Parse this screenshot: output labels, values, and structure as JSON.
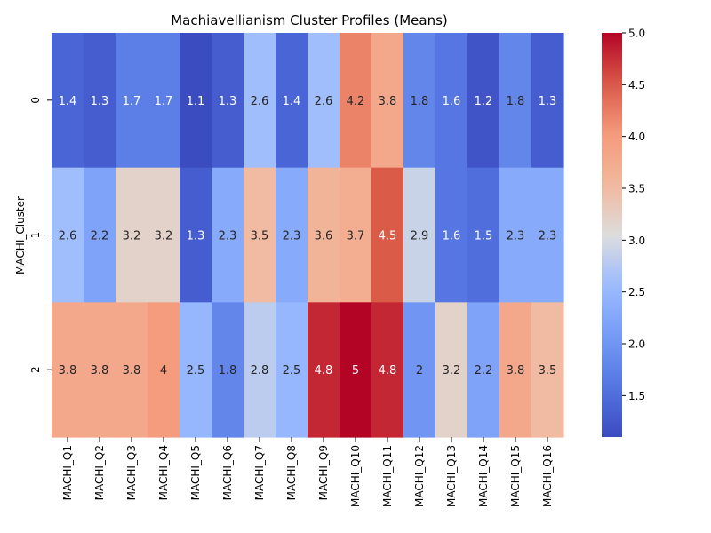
{
  "chart_data": {
    "type": "heatmap",
    "title": "Machiavellianism Cluster Profiles (Means)",
    "xlabel": "",
    "ylabel": "MACHI_Cluster",
    "x_categories": [
      "MACHI_Q1",
      "MACHI_Q2",
      "MACHI_Q3",
      "MACHI_Q4",
      "MACHI_Q5",
      "MACHI_Q6",
      "MACHI_Q7",
      "MACHI_Q8",
      "MACHI_Q9",
      "MACHI_Q10",
      "MACHI_Q11",
      "MACHI_Q12",
      "MACHI_Q13",
      "MACHI_Q14",
      "MACHI_Q15",
      "MACHI_Q16"
    ],
    "y_categories": [
      "0",
      "1",
      "2"
    ],
    "values": [
      [
        1.4,
        1.3,
        1.7,
        1.7,
        1.1,
        1.3,
        2.6,
        1.4,
        2.6,
        4.2,
        3.8,
        1.8,
        1.6,
        1.2,
        1.8,
        1.3
      ],
      [
        2.6,
        2.2,
        3.2,
        3.2,
        1.3,
        2.3,
        3.5,
        2.3,
        3.6,
        3.7,
        4.5,
        2.9,
        1.6,
        1.5,
        2.3,
        2.3
      ],
      [
        3.8,
        3.8,
        3.8,
        4,
        2.5,
        1.8,
        2.8,
        2.5,
        4.8,
        5,
        4.8,
        2,
        3.2,
        2.2,
        3.8,
        3.5
      ]
    ],
    "colormap": "coolwarm",
    "vmin": 1.1,
    "vmax": 5.0,
    "colorbar_ticks": [
      "1.5",
      "2.0",
      "2.5",
      "3.0",
      "3.5",
      "4.0",
      "4.5",
      "5.0"
    ]
  }
}
